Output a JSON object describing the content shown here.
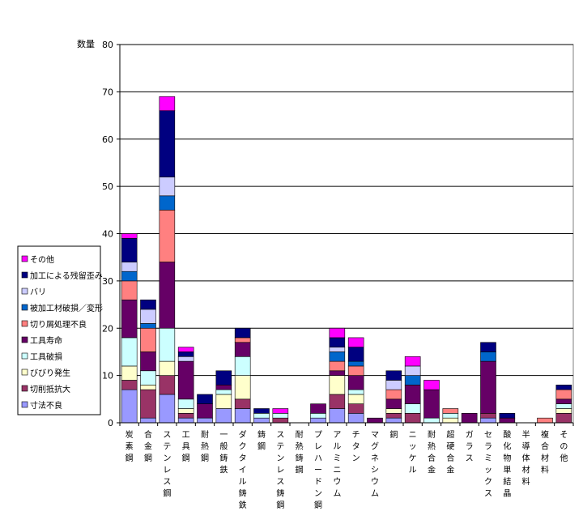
{
  "chart_data": {
    "type": "bar",
    "stacked": true,
    "ylabel": "数量",
    "ylim": [
      0,
      80
    ],
    "yticks": [
      0,
      10,
      20,
      30,
      40,
      50,
      60,
      70,
      80
    ],
    "grid": true,
    "legend_placement": "left",
    "categories": [
      "炭素鋼",
      "合金鋼",
      "ステンレス鋼",
      "工具鋼",
      "耐熱鋼",
      "一般鋳鉄",
      "ダクタイル鋳鉄",
      "鋳鋼",
      "ステンレス鋳鋼",
      "耐熱鋳鋼",
      "プレハードン鋼",
      "アルミニウム",
      "チタン",
      "マグネシウム",
      "銅",
      "ニッケル",
      "耐熱合金",
      "超硬合金",
      "ガラス",
      "セラミックス",
      "酸化物単結晶",
      "半導体材料",
      "複合材料",
      "その他"
    ],
    "series": [
      {
        "name": "寸法不良",
        "color": "#9999ff",
        "values": [
          7,
          1,
          6,
          1,
          1,
          3,
          3,
          1,
          0,
          0,
          1,
          3,
          2,
          0,
          1,
          0,
          0,
          0,
          0,
          1,
          0,
          0,
          0,
          0
        ]
      },
      {
        "name": "切削抵抗大",
        "color": "#993366",
        "values": [
          2,
          6,
          4,
          1,
          0,
          0,
          2,
          0,
          1,
          0,
          0,
          3,
          2,
          0,
          1,
          2,
          0,
          0,
          0,
          1,
          0,
          0,
          0,
          2
        ]
      },
      {
        "name": "びびり発生",
        "color": "#ffffcc",
        "values": [
          3,
          1,
          3,
          1,
          0,
          3,
          5,
          0,
          0,
          0,
          0,
          4,
          2,
          0,
          1,
          0,
          0,
          1,
          0,
          0,
          0,
          0,
          0,
          1
        ]
      },
      {
        "name": "工具破損",
        "color": "#ccffff",
        "values": [
          6,
          3,
          7,
          2,
          0,
          1,
          4,
          1,
          1,
          0,
          1,
          0,
          1,
          0,
          0,
          2,
          1,
          1,
          0,
          0,
          0,
          0,
          0,
          1
        ]
      },
      {
        "name": "工具寿命",
        "color": "#660066",
        "values": [
          8,
          4,
          14,
          8,
          3,
          1,
          3,
          0,
          0,
          0,
          2,
          1,
          3,
          1,
          2,
          4,
          6,
          0,
          2,
          11,
          1,
          0,
          0,
          1
        ]
      },
      {
        "name": "切り屑処理不良",
        "color": "#ff8080",
        "values": [
          4,
          5,
          11,
          0,
          0,
          0,
          1,
          0,
          0,
          0,
          0,
          2,
          2,
          0,
          2,
          0,
          0,
          1,
          0,
          0,
          0,
          0,
          1,
          2
        ]
      },
      {
        "name": "被加工材破損／変形",
        "color": "#0066cc",
        "values": [
          2,
          1,
          3,
          0,
          0,
          0,
          0,
          0,
          0,
          0,
          0,
          2,
          1,
          0,
          0,
          2,
          0,
          0,
          0,
          2,
          0,
          0,
          0,
          0
        ]
      },
      {
        "name": "バリ",
        "color": "#ccccff",
        "values": [
          2,
          3,
          4,
          1,
          0,
          0,
          0,
          0,
          0,
          0,
          0,
          1,
          0,
          0,
          2,
          2,
          0,
          0,
          0,
          0,
          0,
          0,
          0,
          0
        ]
      },
      {
        "name": "加工による残留歪み",
        "color": "#000080",
        "values": [
          5,
          2,
          14,
          1,
          2,
          3,
          2,
          1,
          0,
          0,
          0,
          2,
          3,
          0,
          2,
          0,
          0,
          0,
          0,
          2,
          1,
          0,
          0,
          1
        ]
      },
      {
        "name": "その他",
        "color": "#ff00ff",
        "values": [
          1,
          0,
          3,
          1,
          0,
          0,
          0,
          0,
          1,
          0,
          0,
          2,
          2,
          0,
          0,
          2,
          2,
          0,
          0,
          0,
          0,
          0,
          0,
          0
        ]
      }
    ]
  }
}
